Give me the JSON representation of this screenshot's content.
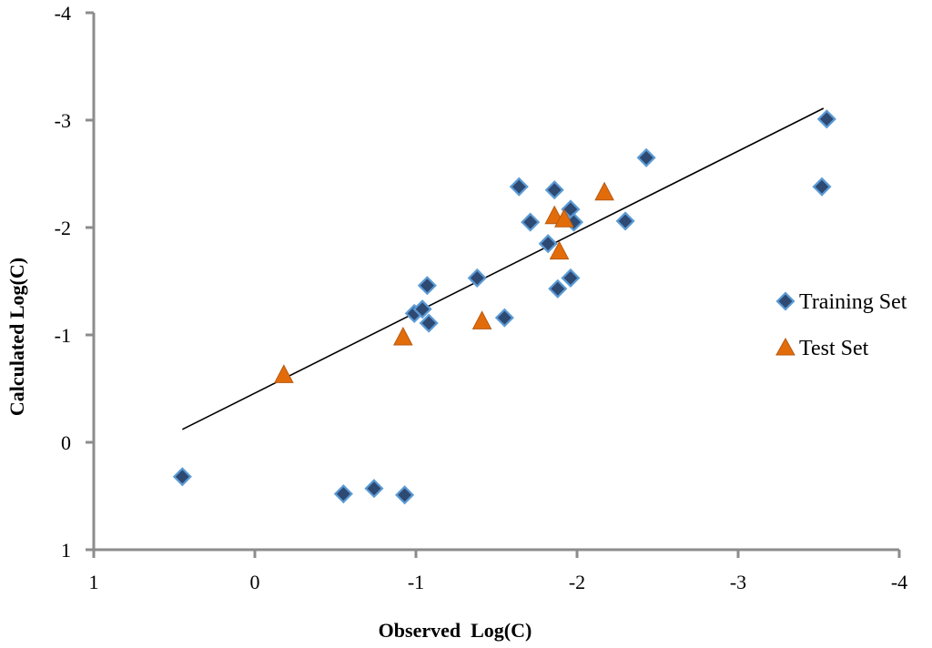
{
  "chart_data": {
    "type": "scatter",
    "title": "",
    "xlabel": "Observed  Log(C)",
    "ylabel": "Calculated Log(C)",
    "xlim": [
      1,
      -4
    ],
    "ylim": [
      1,
      -4
    ],
    "x_ticks": [
      1,
      0,
      -1,
      -2,
      -3,
      -4
    ],
    "y_ticks": [
      1,
      0,
      -1,
      -2,
      -3,
      -4
    ],
    "x_tick_labels": [
      "1",
      "0",
      "-1",
      "-2",
      "-3",
      "-4"
    ],
    "y_tick_labels": [
      "1",
      "0",
      "-1",
      "-2",
      "-3",
      "-4"
    ],
    "grid": false,
    "legend_position": "right",
    "series": [
      {
        "name": "Training Set",
        "marker": "diamond",
        "color": "#2e4a73",
        "edge_color": "#5b9bd5",
        "points": [
          [
            0.45,
            0.32
          ],
          [
            -0.55,
            0.48
          ],
          [
            -0.74,
            0.43
          ],
          [
            -0.93,
            0.49
          ],
          [
            -0.99,
            -1.2
          ],
          [
            -1.04,
            -1.24
          ],
          [
            -1.08,
            -1.11
          ],
          [
            -1.07,
            -1.46
          ],
          [
            -1.38,
            -1.53
          ],
          [
            -1.55,
            -1.16
          ],
          [
            -1.64,
            -2.38
          ],
          [
            -1.71,
            -2.05
          ],
          [
            -1.82,
            -1.85
          ],
          [
            -1.86,
            -2.35
          ],
          [
            -1.88,
            -1.43
          ],
          [
            -1.96,
            -2.17
          ],
          [
            -1.96,
            -1.53
          ],
          [
            -1.98,
            -2.05
          ],
          [
            -2.3,
            -2.06
          ],
          [
            -2.43,
            -2.65
          ],
          [
            -3.52,
            -2.38
          ],
          [
            -3.55,
            -3.01
          ]
        ]
      },
      {
        "name": "Test Set",
        "marker": "triangle",
        "color": "#e36c0a",
        "edge_color": "#b85a10",
        "points": [
          [
            -0.18,
            -0.62
          ],
          [
            -0.92,
            -0.97
          ],
          [
            -1.41,
            -1.12
          ],
          [
            -1.86,
            -2.1
          ],
          [
            -1.89,
            -1.77
          ],
          [
            -1.92,
            -2.07
          ],
          [
            -2.17,
            -2.32
          ]
        ]
      }
    ],
    "trendline": {
      "x": [
        0.45,
        -3.53
      ],
      "y": [
        -0.12,
        -3.11
      ],
      "color": "#000000"
    }
  }
}
